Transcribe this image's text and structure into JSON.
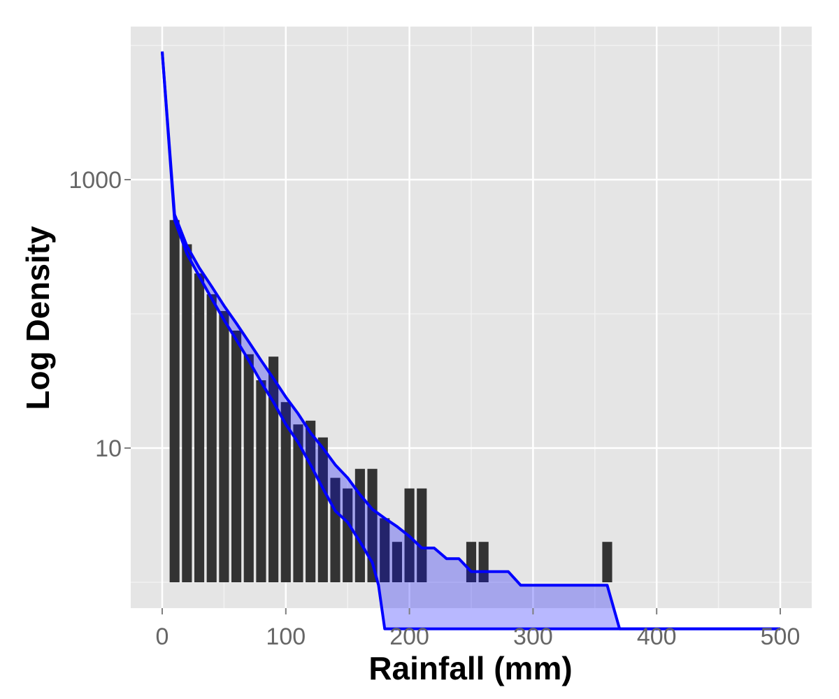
{
  "chart_data": {
    "type": "bar",
    "title": "",
    "xlabel": "Rainfall (mm)",
    "ylabel": "Log Density",
    "y_scale": "log10",
    "xlim": [
      -25,
      525
    ],
    "ylim": [
      0.91,
      31000
    ],
    "grid": true,
    "panel_background": "#e5e5e5",
    "x_ticks": [
      {
        "value": 0,
        "label": "0"
      },
      {
        "value": 100,
        "label": "100"
      },
      {
        "value": 200,
        "label": "200"
      },
      {
        "value": 300,
        "label": "300"
      },
      {
        "value": 400,
        "label": "400"
      },
      {
        "value": 500,
        "label": "500"
      }
    ],
    "y_ticks": [
      {
        "value": 10,
        "label": "10"
      },
      {
        "value": 1000,
        "label": "1000"
      }
    ],
    "bar_color": "#333333",
    "bar_width": 8,
    "bars": [
      {
        "x": 10,
        "y": 500
      },
      {
        "x": 20,
        "y": 330
      },
      {
        "x": 30,
        "y": 200
      },
      {
        "x": 40,
        "y": 140
      },
      {
        "x": 50,
        "y": 105
      },
      {
        "x": 60,
        "y": 75
      },
      {
        "x": 70,
        "y": 50
      },
      {
        "x": 80,
        "y": 32
      },
      {
        "x": 90,
        "y": 48
      },
      {
        "x": 100,
        "y": 22
      },
      {
        "x": 110,
        "y": 15
      },
      {
        "x": 120,
        "y": 16
      },
      {
        "x": 130,
        "y": 12
      },
      {
        "x": 140,
        "y": 6
      },
      {
        "x": 150,
        "y": 5
      },
      {
        "x": 160,
        "y": 7
      },
      {
        "x": 170,
        "y": 7
      },
      {
        "x": 180,
        "y": 3
      },
      {
        "x": 190,
        "y": 2
      },
      {
        "x": 200,
        "y": 5
      },
      {
        "x": 210,
        "y": 5
      },
      {
        "x": 250,
        "y": 2
      },
      {
        "x": 260,
        "y": 2
      },
      {
        "x": 360,
        "y": 2
      }
    ],
    "envelope": {
      "color": "#0000ff",
      "fill": "rgba(0,0,255,0.28)",
      "x": [
        0,
        10,
        20,
        30,
        40,
        50,
        60,
        70,
        80,
        90,
        100,
        110,
        120,
        130,
        140,
        150,
        160,
        170,
        180,
        190,
        200,
        210,
        220,
        230,
        240,
        250,
        260,
        270,
        280,
        290,
        300,
        310,
        320,
        330,
        340,
        350,
        360,
        370,
        380,
        500
      ],
      "upper": [
        9000,
        550,
        320,
        220,
        160,
        115,
        85,
        62,
        45,
        33,
        24,
        18,
        13,
        10,
        7.5,
        6,
        4.5,
        3.5,
        3,
        2.6,
        2.2,
        1.8,
        1.8,
        1.5,
        1.5,
        1.2,
        1.2,
        1.2,
        1.2,
        1.2,
        1.2,
        1.2,
        1.2,
        1.2,
        1.2,
        1.2,
        1.2,
        1.2,
        1.2,
        1.2
      ],
      "lower": [
        9000,
        500,
        280,
        190,
        130,
        90,
        64,
        45,
        31,
        22,
        15,
        11,
        7.5,
        5,
        3.4,
        2.8,
        2,
        1.4,
        1,
        1,
        1,
        1,
        1,
        1,
        1,
        1,
        1,
        1,
        1,
        1,
        1,
        1,
        1,
        1,
        1,
        1,
        1,
        1,
        1,
        1
      ],
      "upper_step": [
        [
          0,
          9000
        ],
        [
          10,
          550
        ],
        [
          20,
          320
        ],
        [
          30,
          220
        ],
        [
          40,
          160
        ],
        [
          50,
          115
        ],
        [
          60,
          85
        ],
        [
          70,
          62
        ],
        [
          80,
          45
        ],
        [
          90,
          33
        ],
        [
          100,
          24
        ],
        [
          110,
          18
        ],
        [
          120,
          13
        ],
        [
          130,
          10
        ],
        [
          140,
          7.5
        ],
        [
          150,
          6
        ],
        [
          160,
          4.5
        ],
        [
          170,
          3.5
        ],
        [
          180,
          3
        ],
        [
          190,
          2.6
        ],
        [
          200,
          2.2
        ],
        [
          210,
          1.8
        ],
        [
          220,
          1.8
        ],
        [
          230,
          1.5
        ],
        [
          240,
          1.5
        ],
        [
          250,
          1.2
        ],
        [
          280,
          1.2
        ],
        [
          290,
          0.95
        ],
        [
          360,
          0.95
        ],
        [
          370,
          0.45
        ],
        [
          500,
          0.45
        ]
      ],
      "lower_step": [
        [
          0,
          9000
        ],
        [
          10,
          500
        ],
        [
          20,
          280
        ],
        [
          30,
          190
        ],
        [
          40,
          130
        ],
        [
          50,
          90
        ],
        [
          60,
          64
        ],
        [
          70,
          45
        ],
        [
          80,
          31
        ],
        [
          90,
          22
        ],
        [
          100,
          15
        ],
        [
          110,
          11
        ],
        [
          120,
          7.5
        ],
        [
          130,
          5
        ],
        [
          140,
          3.4
        ],
        [
          150,
          2.8
        ],
        [
          160,
          2
        ],
        [
          170,
          1.4
        ],
        [
          175,
          0.95
        ],
        [
          180,
          0.45
        ],
        [
          500,
          0.45
        ]
      ]
    }
  }
}
